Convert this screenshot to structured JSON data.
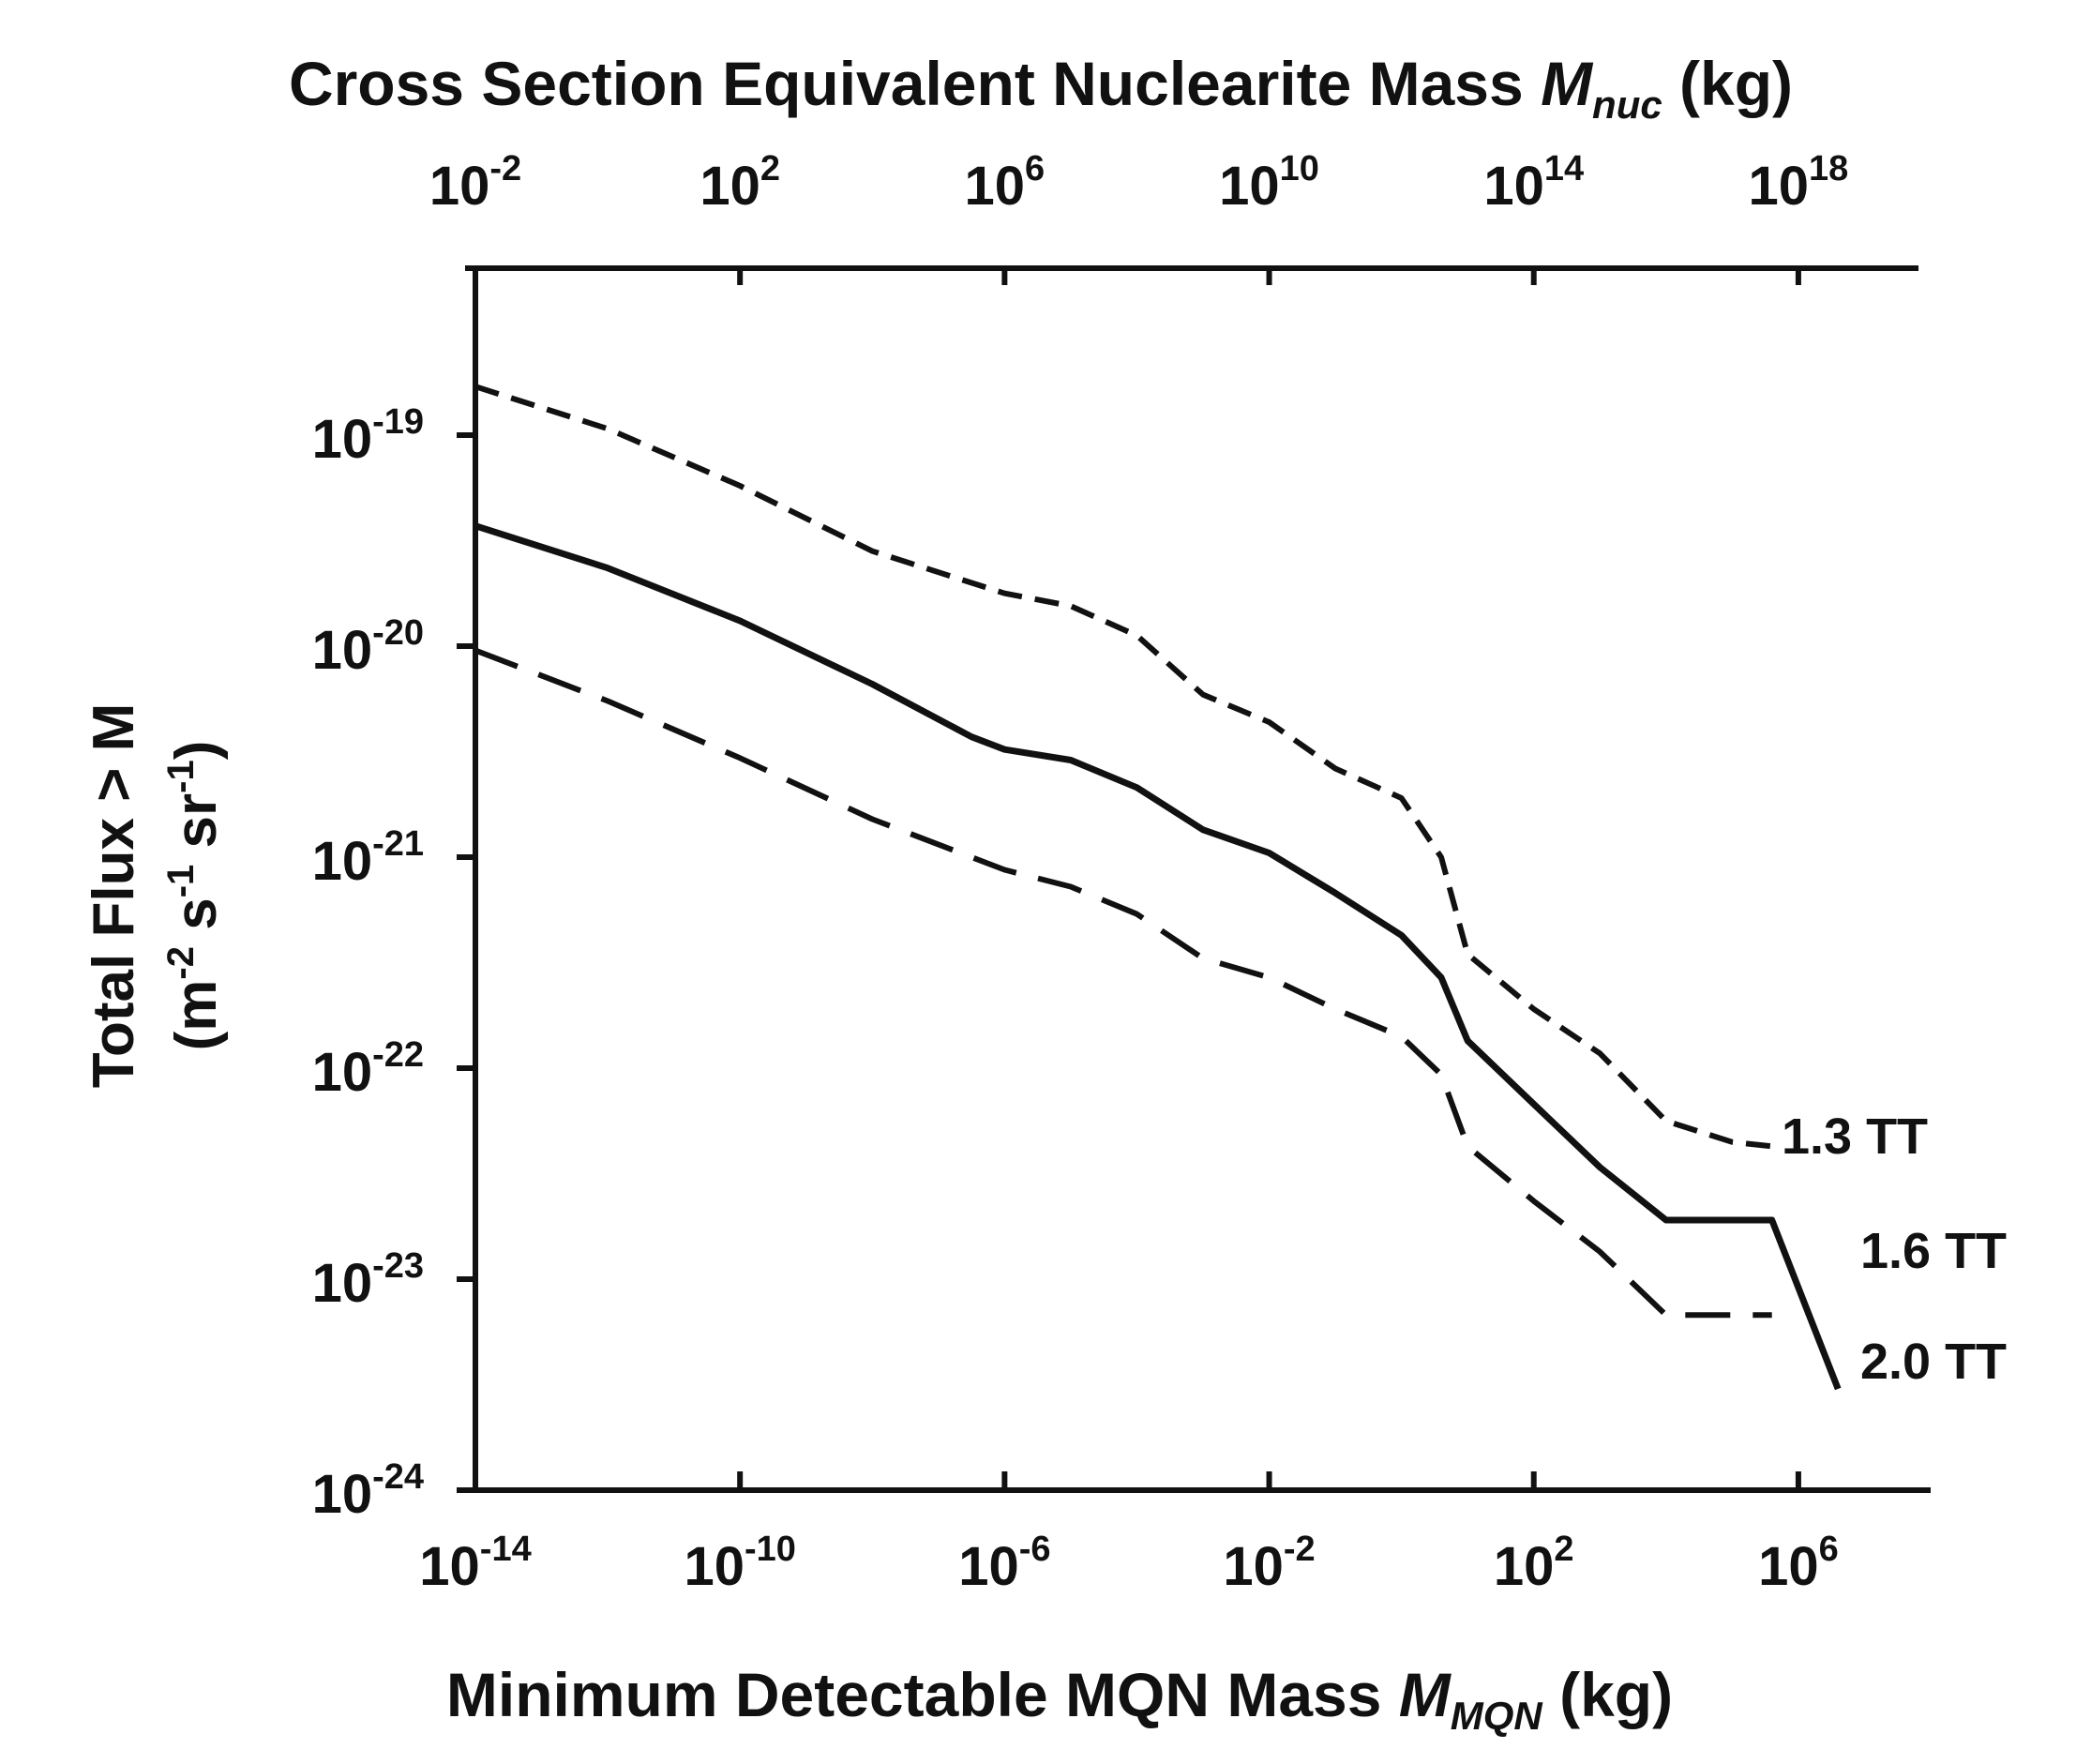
{
  "chart_data": {
    "type": "line",
    "top_axis": {
      "title_main": "Cross Section Equivalent Nuclearite Mass ",
      "title_symbol": "M",
      "title_subscript": "nuc",
      "title_unit": " (kg)",
      "scale": "log10",
      "range": [
        -2,
        20
      ],
      "ticks": [
        {
          "base": "10",
          "exp": "-2",
          "value": -2
        },
        {
          "base": "10",
          "exp": "2",
          "value": 2
        },
        {
          "base": "10",
          "exp": "6",
          "value": 6
        },
        {
          "base": "10",
          "exp": "10",
          "value": 10
        },
        {
          "base": "10",
          "exp": "14",
          "value": 14
        },
        {
          "base": "10",
          "exp": "18",
          "value": 18
        }
      ]
    },
    "x_axis": {
      "title_main": "Minimum Detectable MQN Mass ",
      "title_symbol": "M",
      "title_subscript": "MQN",
      "title_unit": " (kg)",
      "scale": "log10",
      "range": [
        -14,
        8
      ],
      "ticks": [
        {
          "base": "10",
          "exp": "-14",
          "value": -14
        },
        {
          "base": "10",
          "exp": "-10",
          "value": -10
        },
        {
          "base": "10",
          "exp": "-6",
          "value": -6
        },
        {
          "base": "10",
          "exp": "-2",
          "value": -2
        },
        {
          "base": "10",
          "exp": "2",
          "value": 2
        },
        {
          "base": "10",
          "exp": "6",
          "value": 6
        }
      ]
    },
    "y_axis": {
      "title_line1": "Total Flux > M",
      "title_line2_parts": [
        "(m",
        "-2",
        " s",
        "-1",
        " sr",
        "-1",
        ")"
      ],
      "scale": "log10",
      "range": [
        -24,
        -18.28
      ],
      "ticks": [
        {
          "base": "10",
          "exp": "-19",
          "value": -19
        },
        {
          "base": "10",
          "exp": "-20",
          "value": -20
        },
        {
          "base": "10",
          "exp": "-21",
          "value": -21
        },
        {
          "base": "10",
          "exp": "-22",
          "value": -22
        },
        {
          "base": "10",
          "exp": "-23",
          "value": -23
        },
        {
          "base": "10",
          "exp": "-24",
          "value": -24
        }
      ]
    },
    "series": [
      {
        "name": "1.3 TT",
        "style": "short-dash",
        "x": [
          -14,
          -12,
          -10,
          -8,
          -6,
          -5,
          -4,
          -3,
          -2,
          -1,
          0,
          0.6,
          1,
          2,
          3,
          4,
          5,
          5.6
        ],
        "y": [
          -18.77,
          -18.97,
          -19.24,
          -19.55,
          -19.75,
          -19.81,
          -19.95,
          -20.23,
          -20.36,
          -20.58,
          -20.72,
          -21.0,
          -21.46,
          -21.72,
          -21.93,
          -22.25,
          -22.35,
          -22.37
        ]
      },
      {
        "name": "1.6 TT",
        "style": "solid",
        "x": [
          -14,
          -12,
          -10,
          -8,
          -6.5,
          -6,
          -5,
          -4,
          -3,
          -2,
          -1,
          0,
          0.6,
          1,
          2,
          3,
          4,
          5,
          5.6,
          6.6
        ],
        "y": [
          -19.43,
          -19.63,
          -19.88,
          -20.18,
          -20.43,
          -20.49,
          -20.54,
          -20.67,
          -20.87,
          -20.98,
          -21.17,
          -21.37,
          -21.57,
          -21.87,
          -22.17,
          -22.47,
          -22.72,
          -22.72,
          -22.72,
          -23.52
        ]
      },
      {
        "name": "2.0 TT",
        "style": "long-dash",
        "x": [
          -14,
          -12,
          -10,
          -8,
          -6,
          -5,
          -4,
          -3,
          -2,
          -1,
          0,
          0.6,
          1,
          2,
          3,
          4,
          5,
          5.6
        ],
        "y": [
          -20.02,
          -20.26,
          -20.53,
          -20.82,
          -21.06,
          -21.14,
          -21.27,
          -21.48,
          -21.57,
          -21.72,
          -21.85,
          -22.03,
          -22.37,
          -22.63,
          -22.87,
          -23.17,
          -23.17,
          -23.17
        ]
      }
    ]
  }
}
